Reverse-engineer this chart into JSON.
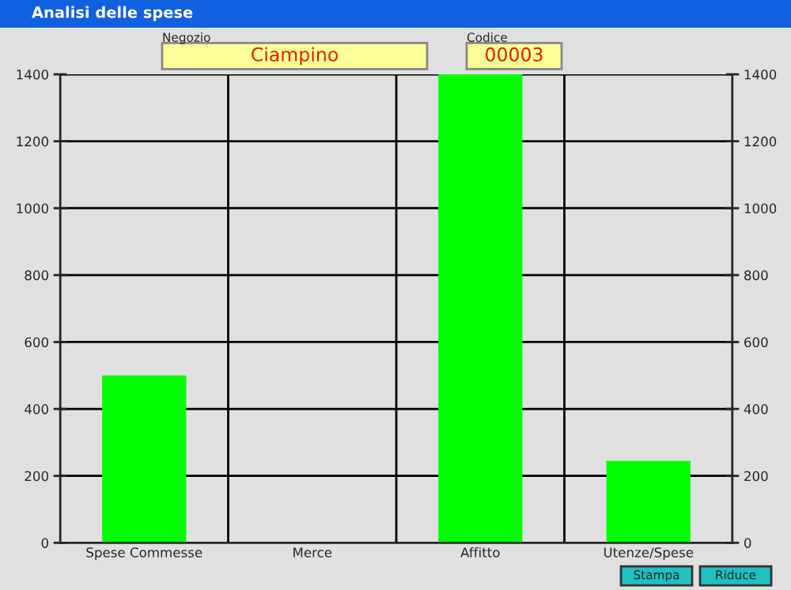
{
  "chart_data": {
    "type": "bar",
    "title": "Analisi delle spese",
    "categories": [
      "Spese Commesse",
      "Merce",
      "Affitto",
      "Utenze/Spese"
    ],
    "values": [
      500,
      0,
      1400,
      245
    ],
    "color": "#00ff00",
    "ylim": [
      0,
      1400
    ],
    "yticks": [
      0,
      200,
      400,
      600,
      800,
      1000,
      1200,
      1400
    ],
    "y2lim": [
      0,
      1400
    ],
    "y2ticks": [
      0,
      200,
      400,
      600,
      800,
      1000,
      1200,
      1400
    ],
    "grid": "y",
    "annotations": [
      "Negozio",
      "Ciampino",
      "Codice",
      "00003",
      "Stampa",
      "Riduce"
    ]
  }
}
